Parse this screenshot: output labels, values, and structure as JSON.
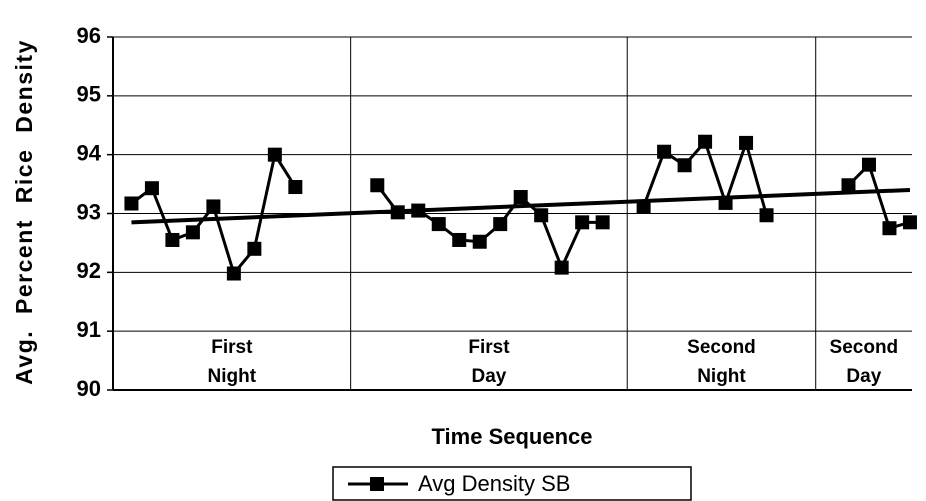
{
  "chart_data": {
    "type": "line",
    "xlabel": "Time Sequence",
    "ylabel": "Avg. Percent Rice Density",
    "x": [
      1,
      2,
      3,
      4,
      5,
      6,
      7,
      8,
      9,
      10,
      11,
      12,
      13,
      14,
      15,
      16,
      17,
      18,
      19,
      20,
      21,
      22,
      23,
      24,
      25,
      26,
      27,
      28,
      29,
      30,
      31,
      32,
      33,
      34,
      35,
      36,
      37,
      38,
      39
    ],
    "series": [
      {
        "name": "Avg Density SB",
        "color": "#000000",
        "values": [
          93.17,
          93.43,
          92.55,
          92.68,
          93.12,
          91.98,
          92.4,
          94.0,
          93.45,
          null,
          null,
          null,
          93.48,
          93.02,
          93.05,
          92.82,
          92.55,
          92.52,
          92.82,
          93.28,
          92.97,
          92.08,
          92.85,
          92.85,
          null,
          93.12,
          94.05,
          93.82,
          94.22,
          93.18,
          94.2,
          92.97,
          null,
          null,
          null,
          93.48,
          93.83,
          92.75,
          92.85
        ]
      }
    ],
    "trendline": {
      "x": [
        1,
        39
      ],
      "values": [
        92.85,
        93.4
      ],
      "color": "#000000"
    },
    "sections": [
      {
        "lines": [
          "First",
          "Night"
        ],
        "start": 0.1,
        "end": 11.7
      },
      {
        "lines": [
          "First",
          "Day"
        ],
        "start": 11.7,
        "end": 25.2
      },
      {
        "lines": [
          "Second",
          "Night"
        ],
        "start": 25.2,
        "end": 34.4
      },
      {
        "lines": [
          "Second",
          "Day"
        ],
        "start": 34.4,
        "end": 39.1
      }
    ],
    "xlim": [
      0.1,
      39.1
    ],
    "ylim": [
      90,
      96
    ],
    "yticks": [
      90,
      91,
      92,
      93,
      94,
      95,
      96
    ],
    "grid": true,
    "legend": "bottom"
  }
}
